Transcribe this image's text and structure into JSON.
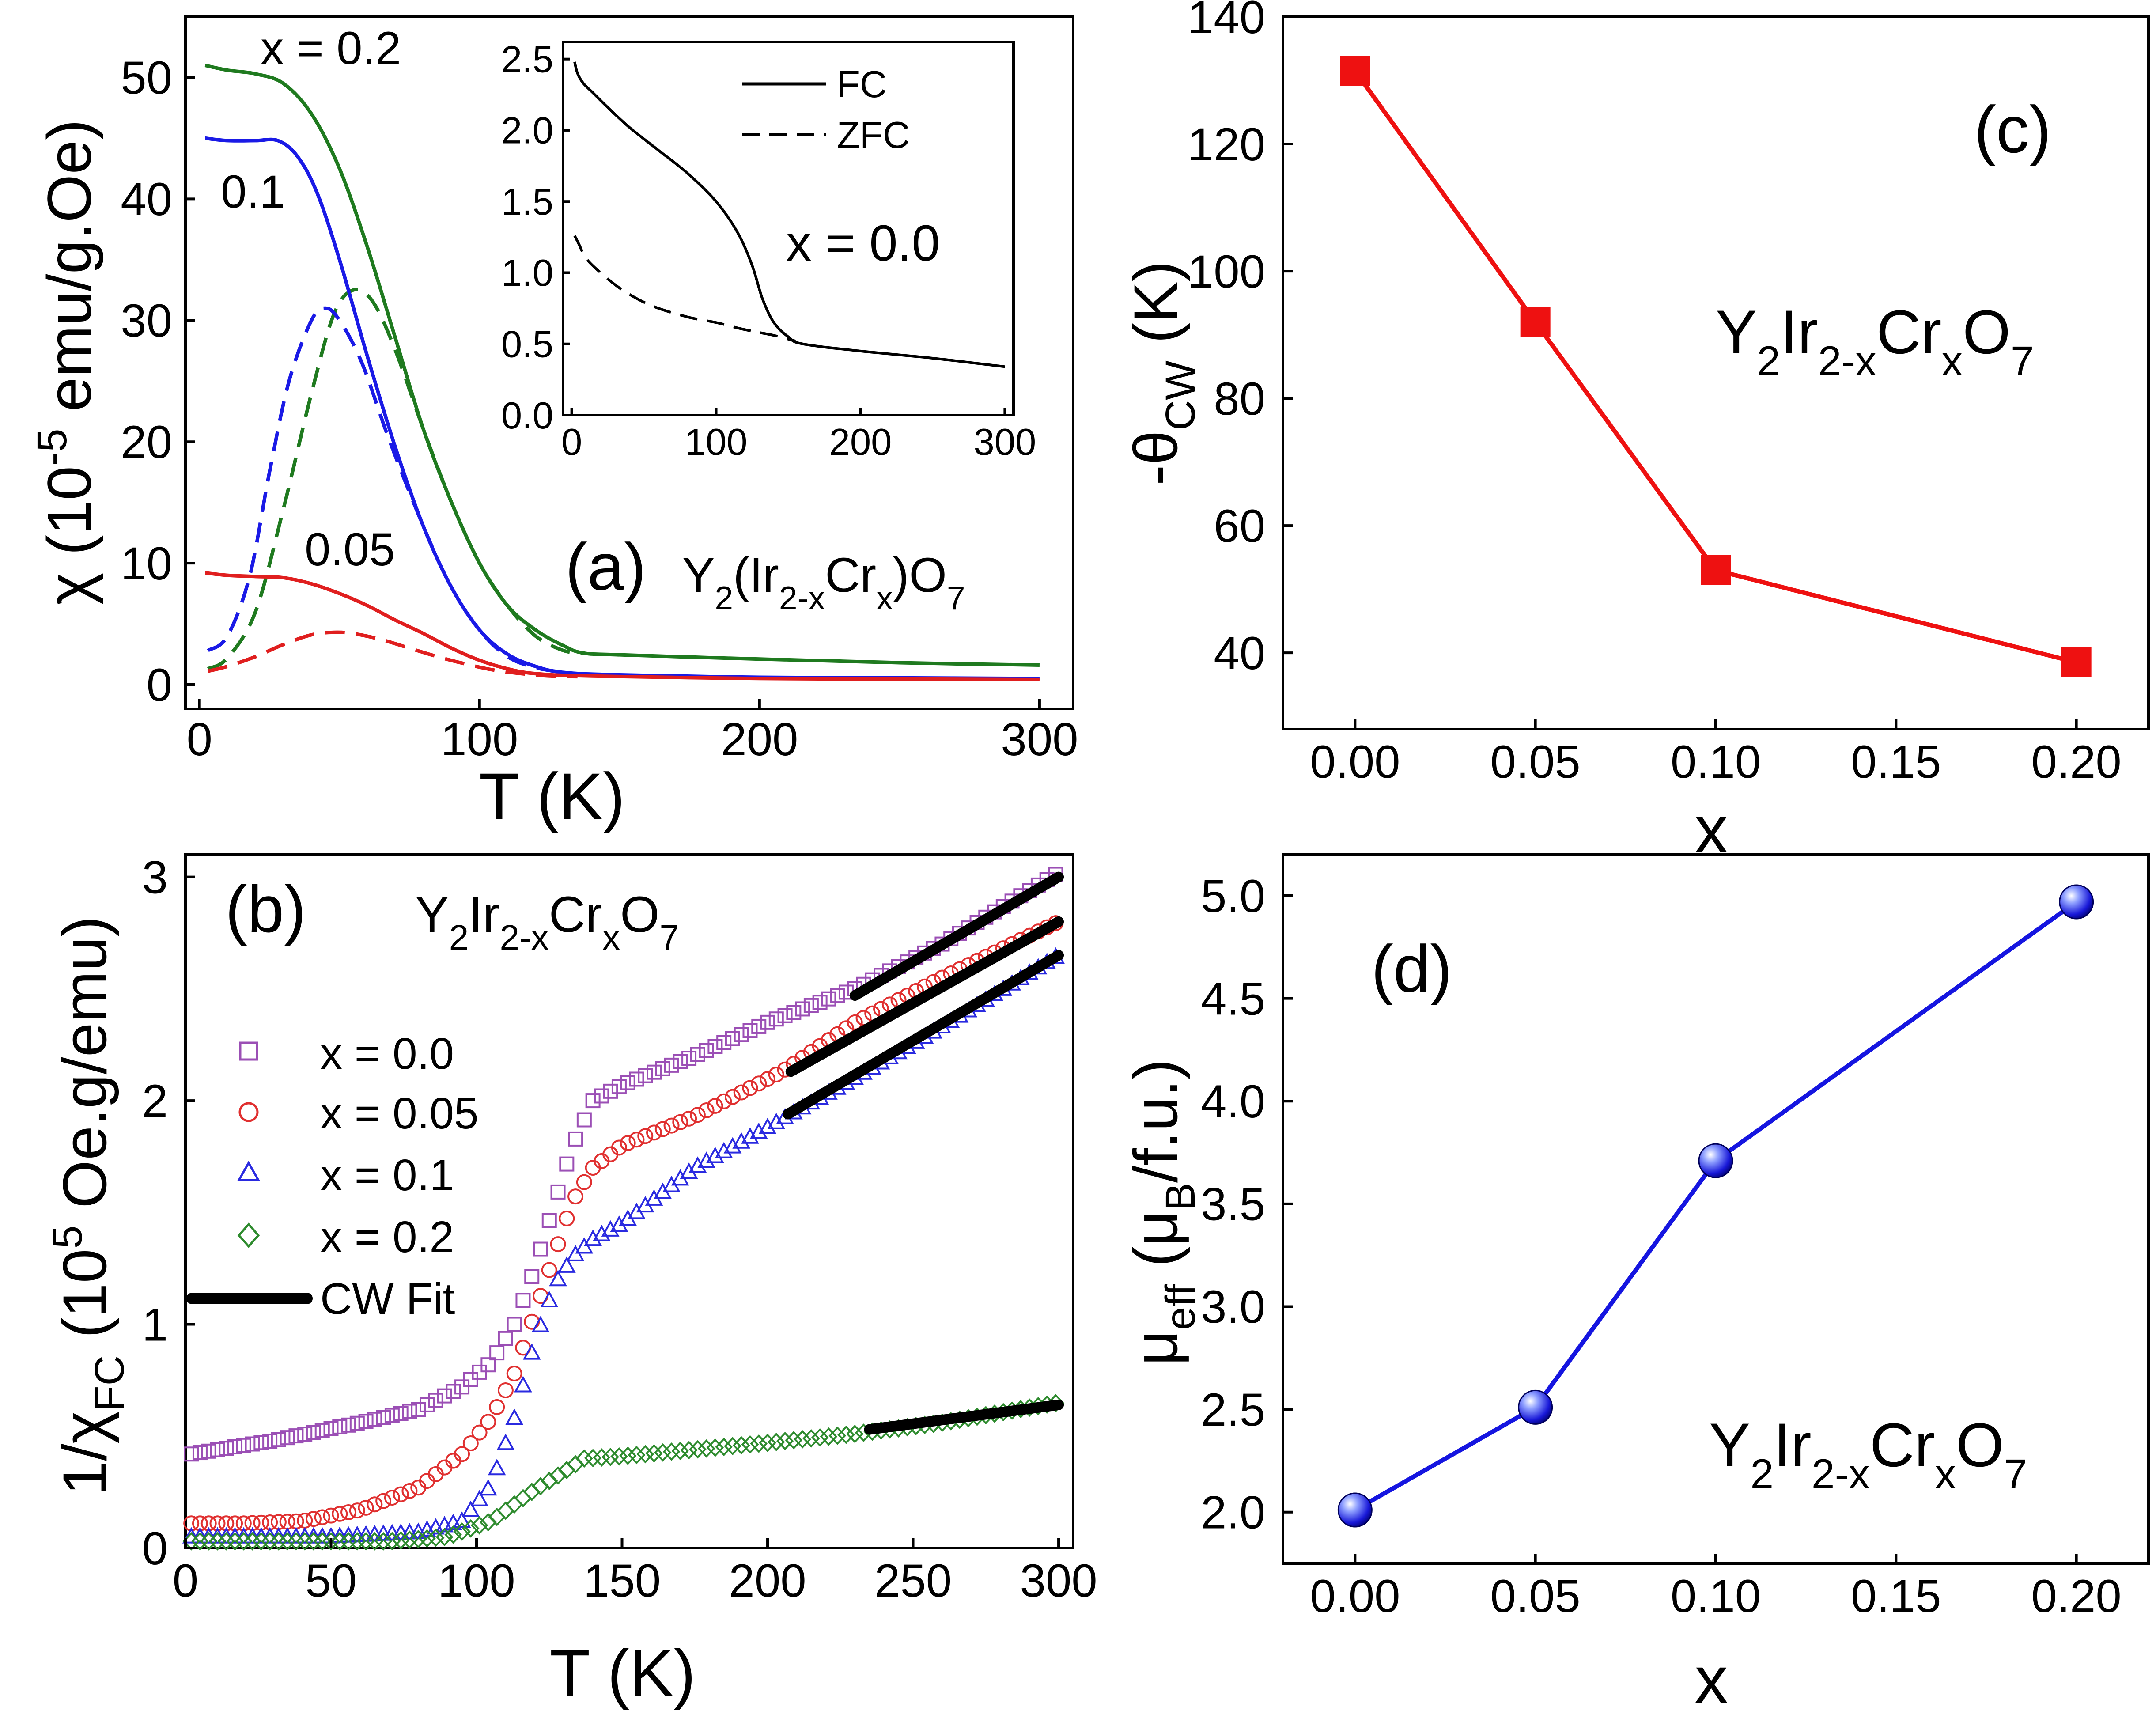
{
  "chart_data": [
    {
      "panel": "(a)",
      "type": "line",
      "xlabel": "T (K)",
      "ylabel_prefix": "χ (10",
      "ylabel_exp": "-5",
      "ylabel_suffix": " emu/g.Oe)",
      "xlim": [
        -5,
        312
      ],
      "ylim": [
        -2,
        55
      ],
      "xticks": [
        0,
        100,
        200,
        300
      ],
      "yticks": [
        0,
        10,
        20,
        30,
        40,
        50
      ],
      "panel_label": "(a)",
      "formula": {
        "Y": "Y",
        "s1": "2",
        "paren": "(Ir",
        "s2": "2-x",
        "cr": "Cr",
        "s3": "x",
        "close": ")O",
        "s4": "7"
      },
      "curve_labels": [
        "x = 0.2",
        "0.1",
        "0.05"
      ],
      "series": [
        {
          "name": "x = 0.2 FC",
          "color": "#1f7a1f",
          "dash": false,
          "points": [
            [
              2,
              51
            ],
            [
              10,
              50.6
            ],
            [
              20,
              50.3
            ],
            [
              30,
              49.5
            ],
            [
              40,
              47
            ],
            [
              50,
              42.5
            ],
            [
              60,
              36
            ],
            [
              70,
              28.5
            ],
            [
              80,
              21
            ],
            [
              90,
              15
            ],
            [
              100,
              10
            ],
            [
              110,
              6.5
            ],
            [
              120,
              4.5
            ],
            [
              130,
              3.2
            ],
            [
              137,
              2.6
            ],
            [
              150,
              2.45
            ],
            [
              200,
              2.1
            ],
            [
              250,
              1.8
            ],
            [
              300,
              1.6
            ]
          ]
        },
        {
          "name": "x = 0.2 ZFC",
          "color": "#1f7a1f",
          "dash": true,
          "points": [
            [
              3,
              1.3
            ],
            [
              10,
              2.2
            ],
            [
              20,
              6
            ],
            [
              30,
              14.5
            ],
            [
              40,
              24
            ],
            [
              48,
              30.5
            ],
            [
              55,
              32.5
            ],
            [
              62,
              31.5
            ],
            [
              70,
              27.5
            ],
            [
              80,
              21
            ],
            [
              90,
              15
            ],
            [
              100,
              10
            ],
            [
              110,
              6.5
            ],
            [
              120,
              4
            ],
            [
              130,
              2.8
            ],
            [
              137,
              2.6
            ]
          ]
        },
        {
          "name": "x = 0.1 FC",
          "color": "#1a1ae6",
          "dash": false,
          "points": [
            [
              2,
              45
            ],
            [
              10,
              44.8
            ],
            [
              20,
              44.8
            ],
            [
              28,
              44.8
            ],
            [
              35,
              43.5
            ],
            [
              42,
              40.5
            ],
            [
              50,
              35
            ],
            [
              60,
              27
            ],
            [
              70,
              19.5
            ],
            [
              80,
              13
            ],
            [
              90,
              8
            ],
            [
              100,
              4.5
            ],
            [
              110,
              2.5
            ],
            [
              120,
              1.5
            ],
            [
              130,
              1
            ],
            [
              150,
              0.8
            ],
            [
              200,
              0.6
            ],
            [
              250,
              0.55
            ],
            [
              300,
              0.5
            ]
          ]
        },
        {
          "name": "x = 0.1 ZFC",
          "color": "#1a1ae6",
          "dash": true,
          "points": [
            [
              3,
              2.8
            ],
            [
              10,
              4
            ],
            [
              18,
              9
            ],
            [
              25,
              17.5
            ],
            [
              32,
              25
            ],
            [
              40,
              30
            ],
            [
              45,
              31
            ],
            [
              50,
              30
            ],
            [
              58,
              26.5
            ],
            [
              68,
              20
            ],
            [
              80,
              13
            ],
            [
              90,
              8
            ],
            [
              100,
              4.5
            ],
            [
              110,
              2.3
            ],
            [
              120,
              1.4
            ],
            [
              130,
              1
            ]
          ]
        },
        {
          "name": "x = 0.05 FC",
          "color": "#e01f1f",
          "dash": false,
          "points": [
            [
              2,
              9.2
            ],
            [
              10,
              9
            ],
            [
              20,
              8.9
            ],
            [
              30,
              8.8
            ],
            [
              40,
              8.3
            ],
            [
              50,
              7.5
            ],
            [
              60,
              6.5
            ],
            [
              70,
              5.3
            ],
            [
              80,
              4.2
            ],
            [
              90,
              3
            ],
            [
              100,
              2
            ],
            [
              110,
              1.3
            ],
            [
              120,
              0.9
            ],
            [
              140,
              0.7
            ],
            [
              200,
              0.5
            ],
            [
              250,
              0.45
            ],
            [
              300,
              0.4
            ]
          ]
        },
        {
          "name": "x = 0.05 ZFC",
          "color": "#e01f1f",
          "dash": true,
          "points": [
            [
              3,
              1.1
            ],
            [
              10,
              1.5
            ],
            [
              20,
              2.3
            ],
            [
              30,
              3.3
            ],
            [
              40,
              4.1
            ],
            [
              48,
              4.3
            ],
            [
              55,
              4.2
            ],
            [
              65,
              3.7
            ],
            [
              75,
              3
            ],
            [
              85,
              2.3
            ],
            [
              95,
              1.7
            ],
            [
              105,
              1.2
            ],
            [
              115,
              0.9
            ],
            [
              125,
              0.7
            ],
            [
              135,
              0.65
            ]
          ]
        }
      ],
      "inset": {
        "xlim": [
          -6,
          306
        ],
        "ylim": [
          0,
          2.62
        ],
        "xticks": [
          0,
          100,
          200,
          300
        ],
        "yticks": [
          "0.0",
          "0.5",
          "1.0",
          "1.5",
          "2.0",
          "2.5"
        ],
        "legend": [
          "FC",
          "ZFC"
        ],
        "label": "x = 0.0",
        "series": [
          {
            "name": "FC",
            "dash": false,
            "points": [
              [
                2,
                2.48
              ],
              [
                4,
                2.4
              ],
              [
                8,
                2.33
              ],
              [
                15,
                2.26
              ],
              [
                25,
                2.16
              ],
              [
                40,
                2.02
              ],
              [
                60,
                1.86
              ],
              [
                80,
                1.7
              ],
              [
                100,
                1.5
              ],
              [
                115,
                1.28
              ],
              [
                125,
                1.05
              ],
              [
                132,
                0.82
              ],
              [
                140,
                0.65
              ],
              [
                150,
                0.55
              ],
              [
                160,
                0.5
              ],
              [
                200,
                0.45
              ],
              [
                250,
                0.4
              ],
              [
                300,
                0.34
              ]
            ]
          },
          {
            "name": "ZFC",
            "dash": true,
            "points": [
              [
                2,
                1.26
              ],
              [
                5,
                1.2
              ],
              [
                10,
                1.1
              ],
              [
                20,
                1
              ],
              [
                35,
                0.88
              ],
              [
                55,
                0.77
              ],
              [
                80,
                0.69
              ],
              [
                100,
                0.65
              ],
              [
                120,
                0.6
              ],
              [
                140,
                0.56
              ],
              [
                155,
                0.52
              ]
            ]
          }
        ]
      }
    },
    {
      "panel": "(b)",
      "type": "scatter",
      "xlabel": "T (K)",
      "ylabel_prefix": "1/χ",
      "ylabel_sub": "FC",
      "ylabel_mid": " (10",
      "ylabel_exp": "5",
      "ylabel_suffix": " Oe.g/emu)",
      "xlim": [
        0,
        305
      ],
      "ylim": [
        0,
        3.1
      ],
      "xticks": [
        0,
        50,
        100,
        150,
        200,
        250,
        300
      ],
      "yticks": [
        0,
        1,
        2,
        3
      ],
      "panel_label": "(b)",
      "formula": {
        "Y": "Y",
        "s1": "2",
        "ir": "Ir",
        "s2": "2-x",
        "cr": "Cr",
        "s3": "x",
        "o": "O",
        "s4": "7"
      },
      "legend": [
        "x = 0.0",
        "x = 0.05",
        "x = 0.1",
        "x = 0.2",
        "CW Fit"
      ],
      "series": [
        {
          "name": "x = 0.0",
          "marker": "square",
          "color": "#9b4fb5",
          "points": [
            [
              2,
              0.42
            ],
            [
              30,
              0.48
            ],
            [
              60,
              0.56
            ],
            [
              80,
              0.62
            ],
            [
              95,
              0.72
            ],
            [
              105,
              0.83
            ],
            [
              113,
              1
            ],
            [
              120,
              1.25
            ],
            [
              127,
              1.55
            ],
            [
              133,
              1.8
            ],
            [
              140,
              2
            ],
            [
              150,
              2.07
            ],
            [
              175,
              2.2
            ],
            [
              200,
              2.35
            ],
            [
              230,
              2.5
            ],
            [
              260,
              2.7
            ],
            [
              300,
              3.02
            ]
          ]
        },
        {
          "name": "x = 0.05",
          "marker": "circle",
          "color": "#e03030",
          "points": [
            [
              2,
              0.11
            ],
            [
              20,
              0.11
            ],
            [
              40,
              0.12
            ],
            [
              60,
              0.17
            ],
            [
              80,
              0.27
            ],
            [
              95,
              0.42
            ],
            [
              105,
              0.58
            ],
            [
              113,
              0.78
            ],
            [
              120,
              1.05
            ],
            [
              127,
              1.32
            ],
            [
              133,
              1.55
            ],
            [
              140,
              1.7
            ],
            [
              150,
              1.8
            ],
            [
              175,
              1.93
            ],
            [
              205,
              2.13
            ],
            [
              230,
              2.35
            ],
            [
              260,
              2.55
            ],
            [
              300,
              2.8
            ]
          ]
        },
        {
          "name": "x = 0.1",
          "marker": "triangle",
          "color": "#2a2ae0",
          "points": [
            [
              2,
              0.05
            ],
            [
              50,
              0.05
            ],
            [
              80,
              0.07
            ],
            [
              95,
              0.12
            ],
            [
              105,
              0.28
            ],
            [
              113,
              0.58
            ],
            [
              120,
              0.92
            ],
            [
              127,
              1.18
            ],
            [
              133,
              1.3
            ],
            [
              140,
              1.38
            ],
            [
              150,
              1.45
            ],
            [
              175,
              1.7
            ],
            [
              200,
              1.88
            ],
            [
              230,
              2.1
            ],
            [
              260,
              2.33
            ],
            [
              300,
              2.65
            ]
          ]
        },
        {
          "name": "x = 0.2",
          "marker": "diamond",
          "color": "#2e8b2e",
          "points": [
            [
              2,
              0.03
            ],
            [
              40,
              0.03
            ],
            [
              70,
              0.03
            ],
            [
              90,
              0.05
            ],
            [
              105,
              0.12
            ],
            [
              120,
              0.26
            ],
            [
              130,
              0.34
            ],
            [
              137,
              0.4
            ],
            [
              150,
              0.41
            ],
            [
              175,
              0.44
            ],
            [
              200,
              0.47
            ],
            [
              230,
              0.51
            ],
            [
              260,
              0.56
            ],
            [
              300,
              0.65
            ]
          ]
        }
      ],
      "fits": [
        {
          "name": "x = 0.0",
          "x": [
            230,
            300
          ],
          "y": [
            2.47,
            3.0
          ]
        },
        {
          "name": "x = 0.05",
          "x": [
            208,
            300
          ],
          "y": [
            2.13,
            2.8
          ]
        },
        {
          "name": "x = 0.1",
          "x": [
            207,
            300
          ],
          "y": [
            1.94,
            2.65
          ]
        },
        {
          "name": "x = 0.2",
          "x": [
            235,
            300
          ],
          "y": [
            0.53,
            0.64
          ]
        }
      ]
    },
    {
      "panel": "(c)",
      "type": "line",
      "xlabel": "x",
      "ylabel_prefix": "-θ",
      "ylabel_sub": "CW",
      "ylabel_suffix": " (K)",
      "xlim": [
        -0.02,
        0.22
      ],
      "ylim": [
        28,
        140
      ],
      "xticks": [
        "0.00",
        "0.05",
        "0.10",
        "0.15",
        "0.20"
      ],
      "yticks": [
        40,
        60,
        80,
        100,
        120,
        140
      ],
      "panel_label": "(c)",
      "formula": {
        "Y": "Y",
        "s1": "2",
        "ir": "Ir",
        "s2": "2-x",
        "cr": "Cr",
        "s3": "x",
        "o": "O",
        "s4": "7"
      },
      "color": "#ee1111",
      "x": [
        0.0,
        0.05,
        0.1,
        0.2
      ],
      "y": [
        131.5,
        92,
        53,
        38.5
      ]
    },
    {
      "panel": "(d)",
      "type": "line",
      "xlabel": "x",
      "ylabel_prefix": "μ",
      "ylabel_sub": "eff",
      "ylabel_mid": " (μ",
      "ylabel_sub2": "B",
      "ylabel_suffix": "/f.u.)",
      "xlim": [
        -0.02,
        0.22
      ],
      "ylim": [
        1.75,
        5.2
      ],
      "xticks": [
        "0.00",
        "0.05",
        "0.10",
        "0.15",
        "0.20"
      ],
      "yticks": [
        "2.0",
        "2.5",
        "3.0",
        "3.5",
        "4.0",
        "4.5",
        "5.0"
      ],
      "panel_label": "(d)",
      "formula": {
        "Y": "Y",
        "s1": "2",
        "ir": "Ir",
        "s2": "2-x",
        "cr": "Cr",
        "s3": "x",
        "o": "O",
        "s4": "7"
      },
      "color": "#1515e0",
      "x": [
        0.0,
        0.05,
        0.1,
        0.2
      ],
      "y": [
        2.01,
        2.51,
        3.71,
        4.97
      ]
    }
  ]
}
